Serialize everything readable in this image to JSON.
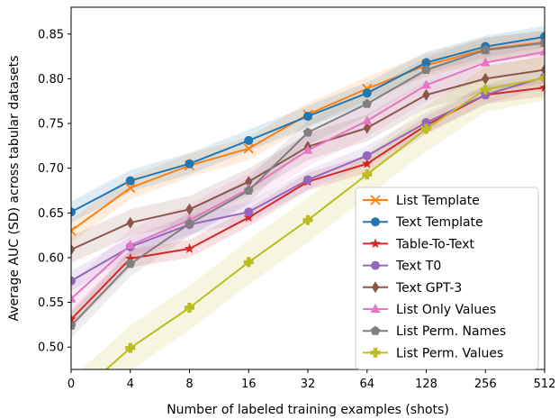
{
  "chart_data": {
    "type": "line",
    "xlabel": "Number of labeled training examples (shots)",
    "ylabel": "Average AUC (SD) across tabular datasets",
    "x_tick_labels": [
      "0",
      "4",
      "8",
      "16",
      "32",
      "64",
      "128",
      "256",
      "512"
    ],
    "ylim": [
      0.475,
      0.88
    ],
    "y_ticks": [
      0.5,
      0.55,
      0.6,
      0.65,
      0.7,
      0.75,
      0.8,
      0.85
    ],
    "y_tick_labels": [
      "0.50",
      "0.55",
      "0.60",
      "0.65",
      "0.70",
      "0.75",
      "0.80",
      "0.85"
    ],
    "legend_position": "lower-right",
    "grid": false,
    "series": [
      {
        "name": "List Template",
        "color": "#ff7f0e",
        "marker": "x",
        "values": [
          0.63,
          0.678,
          0.703,
          0.722,
          0.76,
          0.789,
          0.815,
          0.833,
          0.841
        ],
        "sd": 0.013
      },
      {
        "name": "Text Template",
        "color": "#1f77b4",
        "marker": "circle",
        "values": [
          0.651,
          0.686,
          0.705,
          0.731,
          0.758,
          0.784,
          0.818,
          0.836,
          0.847
        ],
        "sd": 0.012
      },
      {
        "name": "Table-To-Text",
        "color": "#d62728",
        "marker": "star",
        "values": [
          0.531,
          0.599,
          0.61,
          0.645,
          0.685,
          0.705,
          0.748,
          0.782,
          0.79
        ],
        "sd": 0.01
      },
      {
        "name": "Text T0",
        "color": "#9467bd",
        "marker": "circle",
        "values": [
          0.574,
          0.612,
          0.637,
          0.651,
          0.687,
          0.714,
          0.751,
          0.782,
          0.802
        ],
        "sd": 0.011
      },
      {
        "name": "Text GPT-3",
        "color": "#8c564b",
        "marker": "diamond",
        "values": [
          0.609,
          0.639,
          0.654,
          0.685,
          0.724,
          0.745,
          0.782,
          0.8,
          0.81
        ],
        "sd": 0.015
      },
      {
        "name": "List Only Values",
        "color": "#e377c2",
        "marker": "triangle",
        "values": [
          0.554,
          0.614,
          0.642,
          0.677,
          0.72,
          0.753,
          0.793,
          0.818,
          0.83
        ],
        "sd": 0.018
      },
      {
        "name": "List Perm. Names",
        "color": "#7f7f7f",
        "marker": "pentagon",
        "values": [
          0.524,
          0.593,
          0.638,
          0.675,
          0.74,
          0.772,
          0.81,
          0.832,
          0.84
        ],
        "sd": 0.014
      },
      {
        "name": "List Perm. Values",
        "color": "#bcbd22",
        "marker": "plus",
        "values": [
          0.44,
          0.499,
          0.544,
          0.595,
          0.642,
          0.693,
          0.744,
          0.788,
          0.801
        ],
        "sd": 0.025
      }
    ]
  }
}
